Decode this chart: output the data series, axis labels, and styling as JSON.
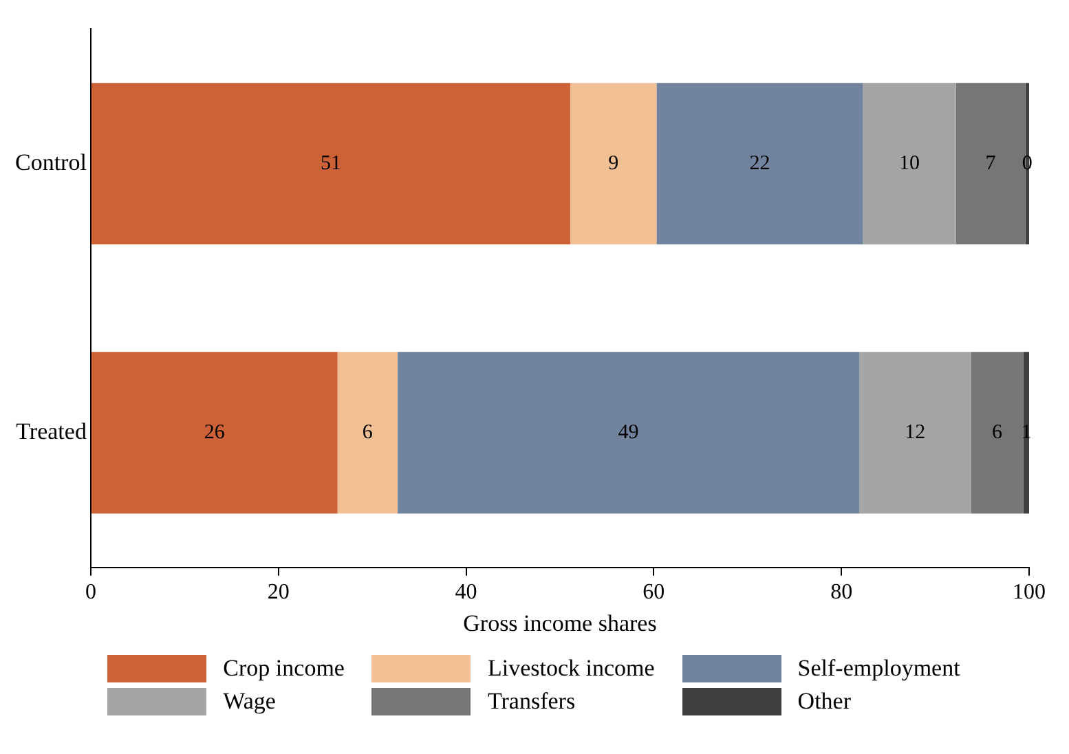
{
  "chart_data": {
    "type": "bar",
    "orientation": "horizontal",
    "stacked": true,
    "xlabel": "Gross income shares",
    "categories": [
      "Control",
      "Treated"
    ],
    "series": [
      {
        "name": "Crop income",
        "color": "#cd6236",
        "values": [
          51.1,
          26.3
        ],
        "value_labels": [
          "51",
          "26"
        ]
      },
      {
        "name": "Livestock income",
        "color": "#f0c094",
        "values": [
          9.2,
          6.4
        ],
        "value_labels": [
          "9",
          "6"
        ]
      },
      {
        "name": "Self-employment",
        "color": "#72839e",
        "values": [
          22.0,
          49.2
        ],
        "value_labels": [
          "22",
          "49"
        ]
      },
      {
        "name": "Wage",
        "color": "#a5a5a5",
        "values": [
          9.9,
          11.9
        ],
        "value_labels": [
          "10",
          "12"
        ]
      },
      {
        "name": "Transfers",
        "color": "#767676",
        "values": [
          7.4,
          5.6
        ],
        "value_labels": [
          "7",
          "6"
        ]
      },
      {
        "name": "Other",
        "color": "#404040",
        "values": [
          0.4,
          0.6
        ],
        "value_labels": [
          "0",
          "1"
        ]
      }
    ],
    "xlim": [
      0,
      100
    ],
    "xticks": [
      0,
      20,
      40,
      60,
      80,
      100
    ],
    "grid": false,
    "legend": "bottom"
  }
}
